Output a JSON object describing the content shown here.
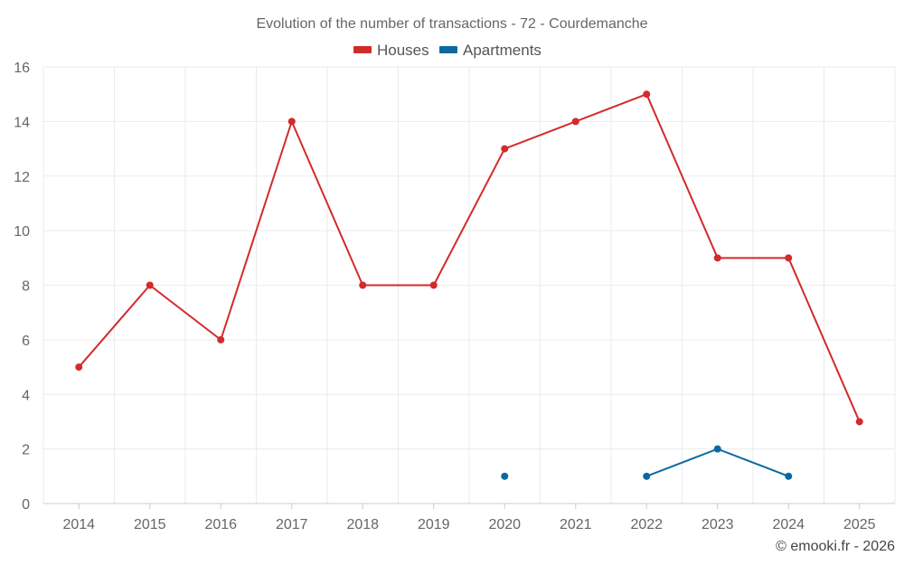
{
  "chart_data": {
    "type": "line",
    "title": "Evolution of the number of transactions - 72 - Courdemanche",
    "xlabel": "",
    "ylabel": "",
    "categories": [
      "2014",
      "2015",
      "2016",
      "2017",
      "2018",
      "2019",
      "2020",
      "2021",
      "2022",
      "2023",
      "2024",
      "2025"
    ],
    "ylim": [
      0,
      16
    ],
    "yticks": [
      0,
      2,
      4,
      6,
      8,
      10,
      12,
      14,
      16
    ],
    "grid": true,
    "legend_position": "top-center",
    "series": [
      {
        "name": "Houses",
        "color": "#d32a2a",
        "values": [
          5,
          8,
          6,
          14,
          8,
          8,
          13,
          14,
          15,
          9,
          9,
          3
        ]
      },
      {
        "name": "Apartments",
        "color": "#0b69a0",
        "values": [
          null,
          null,
          null,
          null,
          null,
          null,
          1,
          null,
          1,
          2,
          1,
          null
        ]
      }
    ]
  },
  "credit": "© emooki.fr - 2026"
}
